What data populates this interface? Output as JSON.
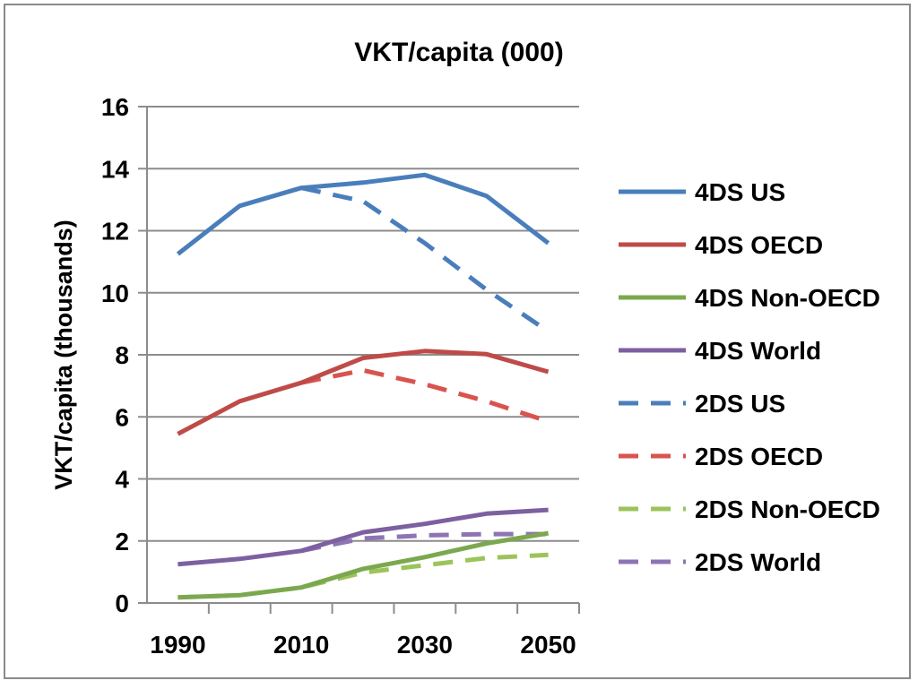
{
  "chart_data": {
    "type": "line",
    "title": "VKT/capita (000)",
    "xlabel": "",
    "ylabel": "VKT/capita (thousands)",
    "xlim": [
      1985,
      2055
    ],
    "ylim": [
      0,
      16
    ],
    "yticks": [
      0,
      2,
      4,
      6,
      8,
      10,
      12,
      14,
      16
    ],
    "xtick_labels": [
      "1990",
      "2010",
      "2030",
      "2050"
    ],
    "xtick_values": [
      1990,
      2010,
      2030,
      2050
    ],
    "grid": true,
    "legend_position": "right",
    "series": [
      {
        "name": "4DS US",
        "color": "#4a7ebb",
        "dash": "solid",
        "x": [
          1990,
          2000,
          2010,
          2020,
          2030,
          2040,
          2050
        ],
        "values": [
          11.25,
          12.8,
          13.38,
          13.55,
          13.8,
          13.12,
          11.6
        ]
      },
      {
        "name": "4DS OECD",
        "color": "#be4b48",
        "dash": "solid",
        "x": [
          1990,
          2000,
          2010,
          2020,
          2030,
          2040,
          2050
        ],
        "values": [
          5.45,
          6.5,
          7.1,
          7.9,
          8.12,
          8.02,
          7.45
        ]
      },
      {
        "name": "4DS Non-OECD",
        "color": "#7ba84f",
        "dash": "solid",
        "x": [
          1990,
          2000,
          2010,
          2020,
          2030,
          2040,
          2050
        ],
        "values": [
          0.18,
          0.25,
          0.5,
          1.1,
          1.48,
          1.92,
          2.25
        ]
      },
      {
        "name": "4DS World",
        "color": "#7d60a0",
        "dash": "solid",
        "x": [
          1990,
          2000,
          2010,
          2020,
          2030,
          2040,
          2050
        ],
        "values": [
          1.25,
          1.42,
          1.68,
          2.28,
          2.55,
          2.88,
          3.0
        ]
      },
      {
        "name": "2DS US",
        "color": "#4a7ebb",
        "dash": "dashed",
        "x": [
          2010,
          2020,
          2030,
          2040,
          2050
        ],
        "values": [
          13.38,
          12.95,
          11.6,
          10.1,
          8.75
        ]
      },
      {
        "name": "2DS OECD",
        "color": "#d9534f",
        "dash": "dashed",
        "x": [
          2010,
          2020,
          2030,
          2040,
          2050
        ],
        "values": [
          7.1,
          7.5,
          7.05,
          6.5,
          5.85
        ]
      },
      {
        "name": "2DS Non-OECD",
        "color": "#9bc45a",
        "dash": "dashed",
        "x": [
          1990,
          2000,
          2010,
          2020,
          2030,
          2040,
          2050
        ],
        "values": [
          0.18,
          0.25,
          0.5,
          0.98,
          1.22,
          1.45,
          1.55
        ]
      },
      {
        "name": "2DS World",
        "color": "#8e74b4",
        "dash": "dashed",
        "x": [
          2010,
          2020,
          2030,
          2040,
          2050
        ],
        "values": [
          1.68,
          2.08,
          2.18,
          2.22,
          2.22
        ]
      }
    ]
  }
}
